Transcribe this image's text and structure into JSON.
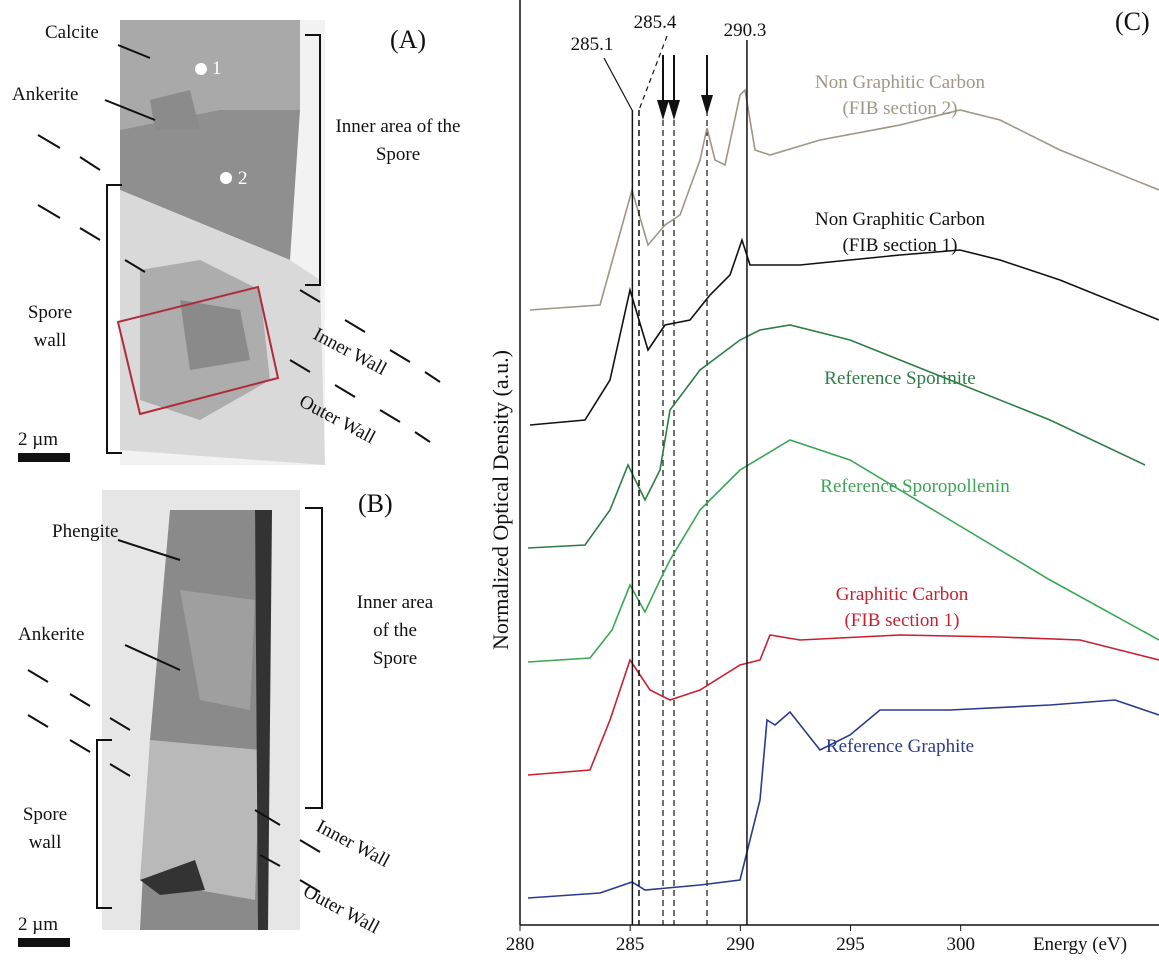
{
  "panel_a": {
    "label": "(A)",
    "annotations": {
      "calcite": "Calcite",
      "ankerite": "Ankerite",
      "inner_area": [
        "Inner area of the",
        "Spore"
      ],
      "spore_wall": [
        "Spore",
        "wall"
      ],
      "inner_wall": "Inner Wall",
      "outer_wall": "Outer Wall",
      "point_1": "1",
      "point_2": "2"
    },
    "scale_bar": "2 µm"
  },
  "panel_b": {
    "label": "(B)",
    "annotations": {
      "phengite": "Phengite",
      "ankerite": "Ankerite",
      "inner_area": [
        "Inner area",
        "of the",
        "Spore"
      ],
      "spore_wall": [
        "Spore",
        "wall"
      ],
      "inner_wall": "Inner Wall",
      "outer_wall": "Outer Wall"
    },
    "scale_bar": "2 µm"
  },
  "panel_c": {
    "label": "(C)",
    "y_label": "Normalized Optical Density (a.u.)",
    "x_label": "Energy (eV)",
    "xlim": [
      280,
      309
    ],
    "xticks": [
      280,
      285,
      290,
      295,
      300
    ],
    "peak_lines": [
      {
        "value": 285.1,
        "label": "285.1"
      },
      {
        "value": 285.4,
        "label": "285.4"
      },
      {
        "value": 290.3,
        "label": "290.3"
      }
    ],
    "curves": [
      {
        "name": [
          "Non Graphitic Carbon",
          "(FIB section 2)"
        ],
        "color": "#a09585"
      },
      {
        "name": [
          "Non Graphitic Carbon",
          "(FIB section 1)"
        ],
        "color": "#111111"
      },
      {
        "name": [
          "Reference Sporinite"
        ],
        "color": "#2e7d46"
      },
      {
        "name": [
          "Reference Sporopollenin"
        ],
        "color": "#3aa655"
      },
      {
        "name": [
          "Graphitic Carbon",
          "(FIB section 1)"
        ],
        "color": "#c8202f"
      },
      {
        "name": [
          "Reference Graphite"
        ],
        "color": "#2a3a8c"
      }
    ]
  }
}
